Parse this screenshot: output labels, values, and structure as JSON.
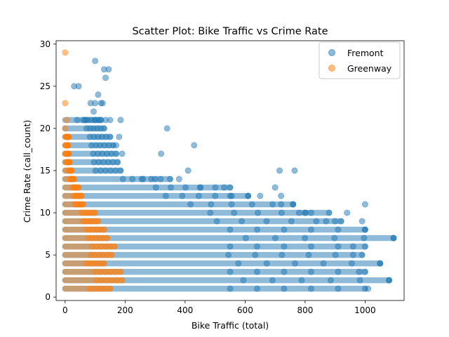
{
  "chart_data": {
    "type": "scatter",
    "title": "Scatter Plot: Bike Traffic vs Crime Rate",
    "xlabel": "Bike Traffic (total)",
    "ylabel": "Crime Rate (call_count)",
    "xlim": [
      -30,
      1130
    ],
    "ylim": [
      -0.4,
      30.4
    ],
    "xticks": [
      0,
      200,
      400,
      600,
      800,
      1000
    ],
    "yticks": [
      0,
      5,
      10,
      15,
      20,
      25,
      30
    ],
    "legend_position": "top-right",
    "point_alpha": 0.5,
    "series": [
      {
        "name": "Fremont",
        "color": "#1f77b4",
        "bands": [
          {
            "y": 1,
            "x_max": 1000
          },
          {
            "y": 2,
            "x_max": 1080
          },
          {
            "y": 3,
            "x_max": 1000
          },
          {
            "y": 4,
            "x_max": 1050
          },
          {
            "y": 5,
            "x_max": 990
          },
          {
            "y": 6,
            "x_max": 1000
          },
          {
            "y": 7,
            "x_max": 1095
          },
          {
            "y": 8,
            "x_max": 1000
          },
          {
            "y": 9,
            "x_max": 920
          },
          {
            "y": 10,
            "x_max": 880
          },
          {
            "y": 11,
            "x_max": 760
          },
          {
            "y": 12,
            "x_max": 610
          },
          {
            "y": 13,
            "x_max": 550
          },
          {
            "y": 14,
            "x_max": 350
          },
          {
            "y": 15,
            "x_max": 185
          },
          {
            "y": 16,
            "x_max": 175
          },
          {
            "y": 17,
            "x_max": 170
          },
          {
            "y": 18,
            "x_max": 160
          },
          {
            "y": 19,
            "x_max": 150
          },
          {
            "y": 20,
            "x_max": 130
          },
          {
            "y": 21,
            "x_max": 120
          }
        ],
        "points": [
          [
            1000,
            11
          ],
          [
            990,
            9
          ],
          [
            940,
            10
          ],
          [
            960,
            6
          ],
          [
            1050,
            4
          ],
          [
            1080,
            2
          ],
          [
            1095,
            7
          ],
          [
            1010,
            1
          ],
          [
            980,
            3
          ],
          [
            1000,
            8
          ],
          [
            960,
            5
          ],
          [
            715,
            15
          ],
          [
            765,
            15
          ],
          [
            430,
            18
          ],
          [
            340,
            20
          ],
          [
            320,
            17
          ],
          [
            410,
            15
          ],
          [
            260,
            14
          ],
          [
            380,
            14
          ],
          [
            450,
            13
          ],
          [
            530,
            13
          ],
          [
            700,
            13
          ],
          [
            300,
            14
          ],
          [
            550,
            12
          ],
          [
            610,
            12
          ],
          [
            650,
            12
          ],
          [
            720,
            12
          ],
          [
            780,
            10
          ],
          [
            800,
            10
          ],
          [
            820,
            10
          ],
          [
            720,
            11
          ],
          [
            760,
            11
          ],
          [
            870,
            9
          ],
          [
            900,
            9
          ],
          [
            100,
            28
          ],
          [
            45,
            25
          ],
          [
            30,
            25
          ],
          [
            130,
            27
          ],
          [
            145,
            27
          ],
          [
            135,
            26
          ],
          [
            110,
            24
          ],
          [
            85,
            23
          ],
          [
            100,
            23
          ],
          [
            120,
            23
          ],
          [
            125,
            23
          ],
          [
            95,
            22
          ],
          [
            70,
            21
          ],
          [
            100,
            21
          ],
          [
            115,
            21
          ],
          [
            185,
            21
          ],
          [
            40,
            21
          ],
          [
            60,
            21
          ],
          [
            135,
            21
          ],
          [
            150,
            21
          ],
          [
            180,
            19
          ],
          [
            170,
            18
          ],
          [
            190,
            17
          ]
        ]
      },
      {
        "name": "Greenway",
        "color": "#ff7f0e",
        "bands": [
          {
            "y": 1,
            "x_max": 150
          },
          {
            "y": 2,
            "x_max": 190
          },
          {
            "y": 3,
            "x_max": 185
          },
          {
            "y": 4,
            "x_max": 130
          },
          {
            "y": 5,
            "x_max": 155
          },
          {
            "y": 6,
            "x_max": 165
          },
          {
            "y": 7,
            "x_max": 140
          },
          {
            "y": 8,
            "x_max": 130
          },
          {
            "y": 9,
            "x_max": 110
          },
          {
            "y": 10,
            "x_max": 100
          },
          {
            "y": 11,
            "x_max": 60
          },
          {
            "y": 12,
            "x_max": 55
          },
          {
            "y": 13,
            "x_max": 45
          },
          {
            "y": 14,
            "x_max": 30
          },
          {
            "y": 15,
            "x_max": 22
          },
          {
            "y": 16,
            "x_max": 15
          },
          {
            "y": 17,
            "x_max": 12
          },
          {
            "y": 18,
            "x_max": 10
          },
          {
            "y": 19,
            "x_max": 12
          }
        ],
        "points": [
          [
            0,
            29
          ],
          [
            0,
            23
          ],
          [
            5,
            21
          ],
          [
            0,
            20
          ],
          [
            3,
            19
          ],
          [
            8,
            19
          ],
          [
            2,
            18
          ],
          [
            0,
            17
          ],
          [
            6,
            16
          ]
        ]
      }
    ]
  }
}
